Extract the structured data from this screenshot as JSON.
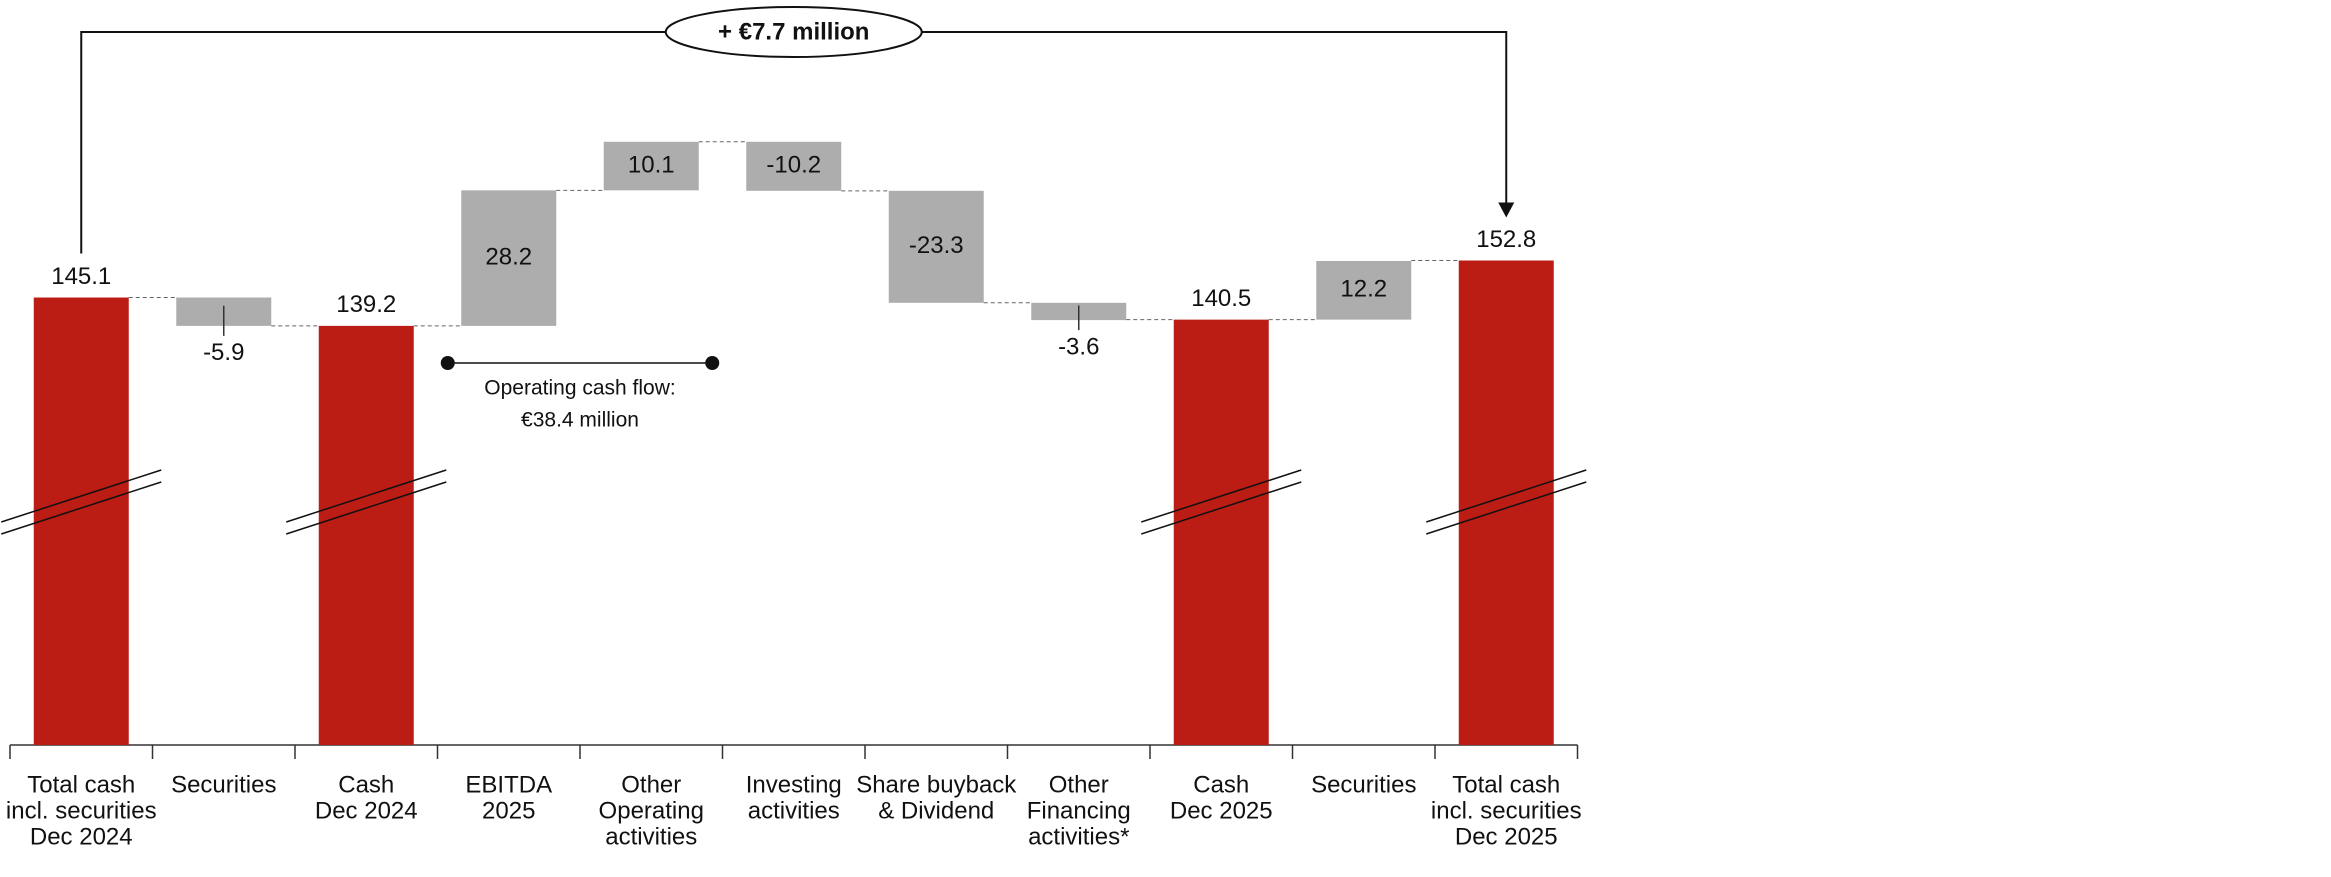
{
  "chart_data": {
    "type": "waterfall",
    "categories": [
      [
        "Total cash",
        "incl. securities",
        "Dec 2024"
      ],
      [
        "Securities"
      ],
      [
        "Cash",
        "Dec 2024"
      ],
      [
        "EBITDA",
        "2025"
      ],
      [
        "Other",
        "Operating",
        "activities"
      ],
      [
        "Investing",
        "activities"
      ],
      [
        "Share buyback",
        "& Dividend"
      ],
      [
        "Other",
        "Financing",
        "activities*"
      ],
      [
        "Cash",
        "Dec 2025"
      ],
      [
        "Securities"
      ],
      [
        "Total cash",
        "incl. securities",
        "Dec 2025"
      ]
    ],
    "values": [
      145.1,
      -5.9,
      139.2,
      28.2,
      10.1,
      -10.2,
      -23.3,
      -3.6,
      140.5,
      12.2,
      152.8
    ],
    "measure": [
      "total",
      "relative",
      "total",
      "relative",
      "relative",
      "relative",
      "relative",
      "relative",
      "total",
      "relative",
      "total"
    ],
    "total_color": "#bb1c14",
    "delta_color": "#adadad",
    "ylim": [
      52,
      207
    ],
    "annotations": [
      {
        "text": "+ €7.7 million"
      },
      {
        "text": [
          "Operating cash flow:",
          "€38.4 million"
        ]
      }
    ]
  }
}
